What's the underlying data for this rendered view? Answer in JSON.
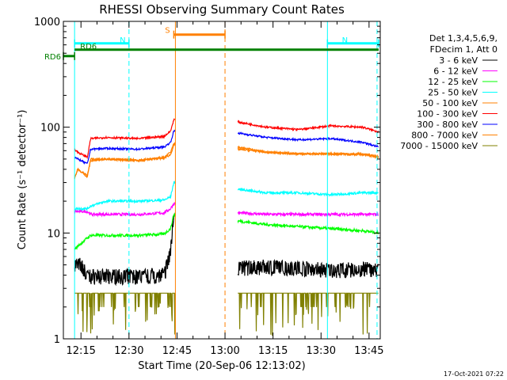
{
  "chart_data": {
    "type": "line",
    "title": "RHESSI Observing Summary Count Rates",
    "xlabel": "Start Time (20-Sep-06 12:13:02)",
    "ylabel": "Count Rate (s⁻¹ detector⁻¹)",
    "yscale": "log",
    "ylim": [
      1,
      1000
    ],
    "xlim": [
      "12:13:02",
      "13:48:00"
    ],
    "x_tick_labels": [
      "12:15",
      "12:30",
      "12:45",
      "13:00",
      "13:15",
      "13:30",
      "13:45"
    ],
    "x_tick_minutes": [
      2,
      17,
      32,
      47,
      62,
      77,
      92
    ],
    "y_tick_labels": [
      "1",
      "10",
      "100",
      "1000"
    ],
    "y_tick_values": [
      1,
      10,
      100,
      1000
    ],
    "legend": {
      "header_line1": "Det 1,3,4,5,6,9,",
      "header_line2": "FDecim 1, Att 0",
      "placement": "right"
    },
    "flags": [
      {
        "label": "N",
        "color": "#00ffff",
        "y_value": 620,
        "start": 0,
        "end": 17,
        "segment": true
      },
      {
        "label": "N",
        "color": "#00ffff",
        "y_value": 620,
        "start": 79,
        "end": 95,
        "segment": true
      },
      {
        "label": "S",
        "color": "#ff8000",
        "y_value": 750,
        "start": 31,
        "end": 47,
        "segment": true
      },
      {
        "label": "RD6",
        "color": "#008000",
        "y_value": 540,
        "start": 0,
        "end": 95,
        "segment": false
      },
      {
        "label": "RD6",
        "color": "#008000",
        "y_value": 470,
        "start": -3.5,
        "end": 0,
        "segment": true
      }
    ],
    "vlines": [
      {
        "minute": 0,
        "color": "#00ffff",
        "style": "solid"
      },
      {
        "minute": 17,
        "color": "#00ffff",
        "style": "dashed"
      },
      {
        "minute": 79,
        "color": "#00ffff",
        "style": "solid"
      },
      {
        "minute": 94.5,
        "color": "#00ffff",
        "style": "dashed"
      },
      {
        "minute": 31.5,
        "color": "#ff8000",
        "style": "solid"
      },
      {
        "minute": 47,
        "color": "#ff8000",
        "style": "dashed"
      }
    ],
    "gap": {
      "start": 31.5,
      "end": 51
    },
    "series": [
      {
        "name": "3 - 6 keV",
        "color": "#000000",
        "noise": 0.07,
        "binary": false,
        "x": [
          0,
          2,
          4,
          10,
          20,
          28,
          30,
          31,
          51,
          60,
          70,
          80,
          90,
          95
        ],
        "y": [
          4.5,
          4.5,
          3.5,
          3.5,
          3.5,
          3.6,
          6,
          15,
          4.2,
          4.3,
          4.2,
          4.0,
          4.1,
          4.0
        ]
      },
      {
        "name": "6 - 12 keV",
        "color": "#ff00ff",
        "noise": 0.03,
        "x": [
          0,
          4,
          5,
          10,
          20,
          28,
          30,
          31,
          51,
          60,
          70,
          80,
          90,
          95
        ],
        "y": [
          16,
          16,
          15,
          15,
          15,
          15.5,
          17,
          19,
          15.5,
          15,
          15,
          15,
          15,
          15
        ]
      },
      {
        "name": "12 - 25 keV",
        "color": "#00ff00",
        "noise": 0.03,
        "x": [
          0,
          1,
          4,
          5,
          10,
          20,
          28,
          30,
          31,
          51,
          60,
          70,
          80,
          90,
          95
        ],
        "y": [
          7,
          7.5,
          9,
          9.5,
          9.5,
          9.5,
          9.8,
          11,
          15,
          13,
          12,
          11.5,
          11,
          10.5,
          10
        ]
      },
      {
        "name": "25 - 50 keV",
        "color": "#00ffff",
        "noise": 0.025,
        "x": [
          0,
          4,
          5,
          10,
          20,
          28,
          30,
          31,
          51,
          60,
          70,
          80,
          90,
          95
        ],
        "y": [
          17,
          17,
          18,
          20,
          20,
          20.5,
          22,
          30,
          26,
          24,
          24,
          23,
          24,
          24
        ]
      },
      {
        "name": "50 - 100 keV",
        "color": "#ff8000",
        "noise": 0.02,
        "x": [
          0,
          1,
          4,
          5,
          10,
          20,
          28,
          30,
          31,
          51,
          60,
          70,
          80,
          90,
          95
        ],
        "y": [
          33,
          40,
          34,
          50,
          50,
          49,
          51,
          55,
          68,
          62,
          58,
          56,
          56,
          56,
          53
        ]
      },
      {
        "name": "100 - 300 keV",
        "color": "#ff0000",
        "noise": 0.02,
        "x": [
          0,
          1,
          4,
          5,
          10,
          20,
          28,
          30,
          31,
          51,
          60,
          70,
          80,
          90,
          95
        ],
        "y": [
          62,
          58,
          52,
          78,
          80,
          78,
          82,
          92,
          118,
          112,
          100,
          95,
          103,
          100,
          90
        ]
      },
      {
        "name": "300 - 800 keV",
        "color": "#0000ff",
        "noise": 0.02,
        "x": [
          0,
          1,
          4,
          5,
          10,
          20,
          28,
          30,
          31,
          51,
          60,
          70,
          80,
          90,
          95
        ],
        "y": [
          52,
          50,
          45,
          62,
          63,
          62,
          65,
          72,
          92,
          88,
          80,
          76,
          78,
          72,
          65
        ]
      },
      {
        "name": "800 - 7000 keV",
        "color": "#ff8000",
        "noise": 0.02,
        "x": [
          0,
          1,
          4,
          5,
          10,
          20,
          28,
          30,
          31,
          51,
          60,
          70,
          80,
          90,
          95
        ],
        "y": [
          33,
          40,
          35,
          48,
          50,
          48,
          52,
          58,
          70,
          65,
          58,
          56,
          56,
          55,
          52
        ]
      },
      {
        "name": "7000 - 15000 keV",
        "color": "#808000",
        "noise": 0,
        "binary": true,
        "x": [
          0,
          31,
          51,
          95
        ],
        "y": [
          2.7,
          2.7,
          2.7,
          2.7
        ]
      }
    ],
    "grid": false
  },
  "stamp": "17-Oct-2021 07:22"
}
